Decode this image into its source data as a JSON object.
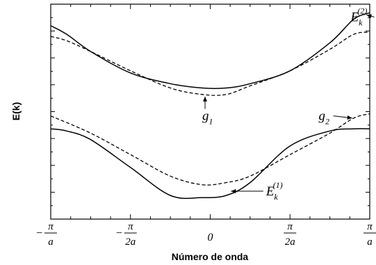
{
  "chart_data": {
    "type": "line",
    "title": "",
    "xlabel": "Número de onda",
    "ylabel": "E(k)",
    "xlim": [
      -1,
      1
    ],
    "x_ticks": [
      {
        "value": -1,
        "num": "π",
        "den": "a",
        "sign": "−"
      },
      {
        "value": -0.5,
        "num": "π",
        "den": "2a",
        "sign": "−"
      },
      {
        "value": 0,
        "text": "0"
      },
      {
        "value": 0.5,
        "num": "π",
        "den": "2a",
        "sign": ""
      },
      {
        "value": 1,
        "num": "π",
        "den": "a",
        "sign": ""
      }
    ],
    "x_unit": "π/a",
    "ylim": [
      0,
      1
    ],
    "y_tick_labels": false,
    "grid": false,
    "legend": "none",
    "series": [
      {
        "style": "solid",
        "x": [
          -1,
          -0.9,
          -0.75,
          -0.5,
          -0.25,
          -0.05,
          0.1,
          0.25,
          0.5,
          0.75,
          0.9,
          1
        ],
        "y": [
          0.42,
          0.41,
          0.37,
          0.24,
          0.11,
          0.1,
          0.11,
          0.17,
          0.34,
          0.41,
          0.42,
          0.42
        ]
      },
      {
        "style": "dashed",
        "x": [
          -1,
          -0.75,
          -0.5,
          -0.25,
          -0.05,
          0.1,
          0.25,
          0.5,
          0.75,
          0.9,
          1
        ],
        "y": [
          0.48,
          0.4,
          0.3,
          0.2,
          0.16,
          0.17,
          0.2,
          0.3,
          0.4,
          0.47,
          0.49
        ]
      },
      {
        "name": "E_k^(2)",
        "style": "solid",
        "x": [
          -1,
          -0.9,
          -0.75,
          -0.5,
          -0.25,
          -0.05,
          0.1,
          0.25,
          0.5,
          0.75,
          0.9,
          1
        ],
        "y": [
          0.9,
          0.86,
          0.78,
          0.68,
          0.63,
          0.61,
          0.61,
          0.63,
          0.69,
          0.82,
          0.93,
          0.96
        ]
      },
      {
        "style": "dashed",
        "x": [
          -1,
          -0.9,
          -0.75,
          -0.5,
          -0.25,
          -0.05,
          0.1,
          0.25,
          0.5,
          0.75,
          0.9,
          1
        ],
        "y": [
          0.85,
          0.83,
          0.78,
          0.69,
          0.61,
          0.58,
          0.58,
          0.62,
          0.69,
          0.79,
          0.86,
          0.87
        ]
      }
    ],
    "annotations": [
      {
        "label": "E",
        "sub": "k",
        "sup": "(2)",
        "x": 0.88,
        "y": 0.94,
        "arrow_to": [
          0.98,
          0.95
        ],
        "direction": "right"
      },
      {
        "label": "g",
        "sub": "1",
        "x": -0.05,
        "y": 0.48,
        "arrow_to": [
          -0.05,
          0.57
        ],
        "direction": "up"
      },
      {
        "label": "g",
        "sub": "2",
        "x": 0.68,
        "y": 0.48,
        "arrow_to": [
          0.89,
          0.47
        ],
        "direction": "right"
      },
      {
        "label": "E",
        "sub": "k",
        "sup": "(1)",
        "x": 0.35,
        "y": 0.13,
        "arrow_to": [
          0.13,
          0.13
        ],
        "direction": "left"
      }
    ],
    "colors": {
      "line": "#000000",
      "background": "#ffffff"
    }
  }
}
